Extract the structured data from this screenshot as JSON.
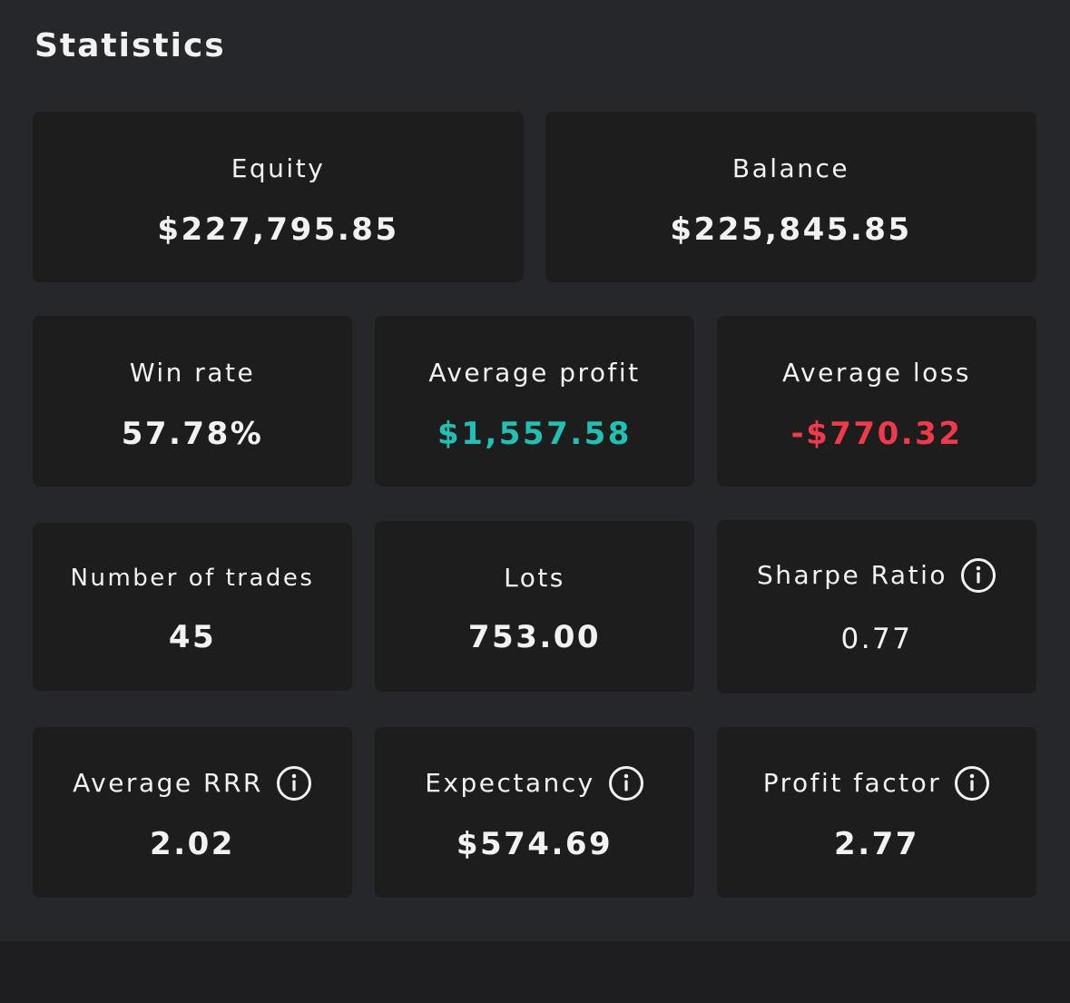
{
  "title": "Statistics",
  "cards": [
    {
      "label": "Equity",
      "value": "$227,795.85"
    },
    {
      "label": "Balance",
      "value": "$225,845.85"
    },
    {
      "label": "Win rate",
      "value": "57.78%"
    },
    {
      "label": "Average profit",
      "value": "$1,557.58"
    },
    {
      "label": "Average loss",
      "value": "-$770.32"
    },
    {
      "label": "Number of trades",
      "value": "45"
    },
    {
      "label": "Lots",
      "value": "753.00"
    },
    {
      "label": "Sharpe Ratio",
      "value": "0.77"
    },
    {
      "label": "Average RRR",
      "value": "2.02"
    },
    {
      "label": "Expectancy",
      "value": "$574.69"
    },
    {
      "label": "Profit factor",
      "value": "2.77"
    }
  ]
}
